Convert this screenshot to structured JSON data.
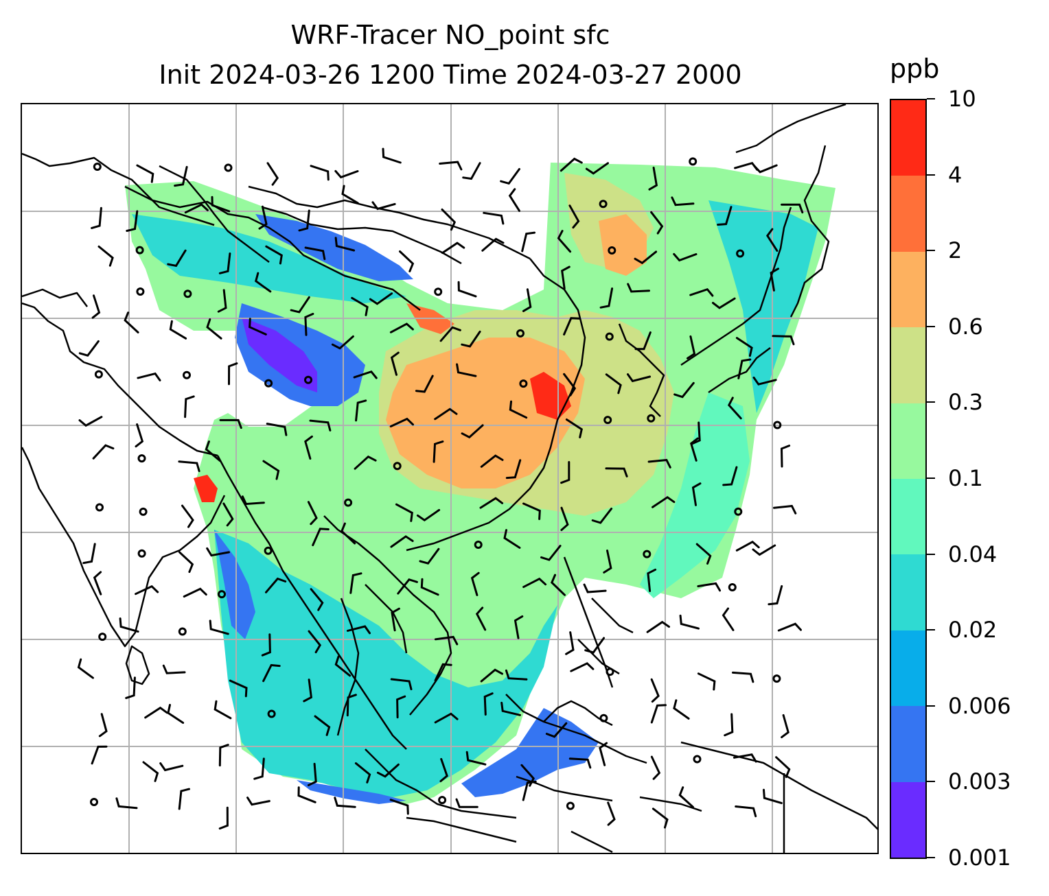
{
  "title_line1": "WRF-Tracer NO_point sfc",
  "title_line2": "Init 2024-03-26 1200 Time 2024-03-27 2000",
  "colorbar": {
    "unit": "ppb",
    "tick_labels": [
      "0.001",
      "0.003",
      "0.006",
      "0.02",
      "0.04",
      "0.1",
      "0.3",
      "0.6",
      "2",
      "4",
      "10"
    ],
    "colors": [
      "#6a2cff",
      "#3575f2",
      "#08adea",
      "#2fdad2",
      "#61f8bd",
      "#97f99e",
      "#cde187",
      "#fdb15f",
      "#ff7039",
      "#ff2a16"
    ]
  },
  "map": {
    "gridlines": true,
    "coastline_color": "#000000",
    "gridline_color": "#b0b0b0",
    "wind_barb_color": "#000000"
  }
}
